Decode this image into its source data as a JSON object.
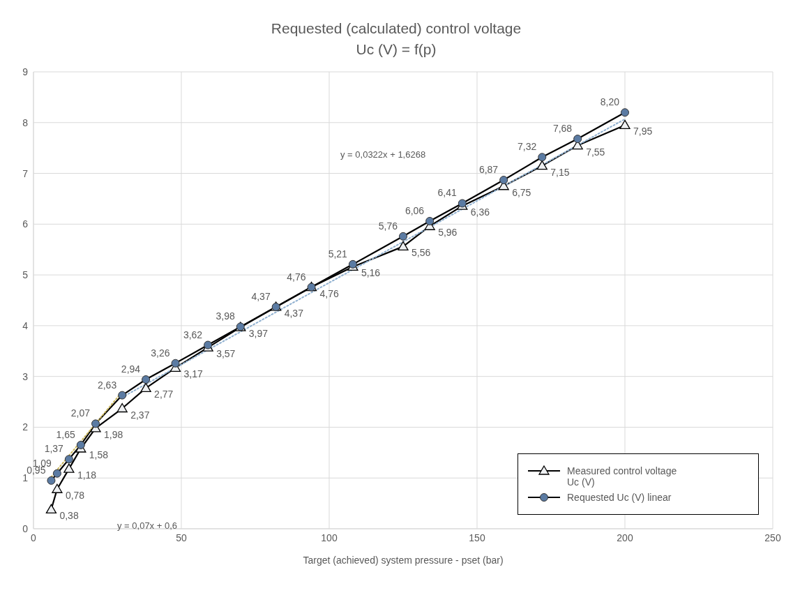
{
  "chart_data": {
    "type": "line",
    "title": "Requested (calculated) control voltage",
    "subtitle": "Uc (V) = f(p)",
    "xlabel": "Target (achieved) system pressure - pset (bar)",
    "x": [
      6,
      8,
      12,
      16,
      21,
      30,
      38,
      48,
      59,
      70,
      82,
      94,
      108,
      125,
      134,
      145,
      159,
      172,
      184,
      200
    ],
    "series": [
      {
        "name": "Measured control voltage Uc (V)",
        "color": "#000000",
        "marker": "triangle",
        "line_style": "solid",
        "values": [
          0.38,
          0.78,
          1.18,
          1.58,
          1.98,
          2.37,
          2.77,
          3.17,
          3.57,
          3.97,
          4.37,
          4.76,
          5.16,
          5.56,
          5.96,
          6.36,
          6.75,
          7.15,
          7.55,
          7.95
        ],
        "value_labels": [
          "0,38",
          "0,78",
          "1,18",
          "1,58",
          "1,98",
          "2,37",
          "2,77",
          "3,17",
          "3,57",
          "3,97",
          "4,37",
          "4,76",
          "5,16",
          "5,56",
          "5,96",
          "6,36",
          "6,75",
          "7,15",
          "7,55",
          "7,95"
        ]
      },
      {
        "name": "Requested Uc (V) linear",
        "color": "#5b7ba3",
        "marker": "circle",
        "line_style": "solid",
        "values": [
          0.95,
          1.09,
          1.37,
          1.65,
          2.07,
          2.63,
          2.94,
          3.26,
          3.62,
          3.98,
          4.37,
          4.76,
          5.21,
          5.76,
          6.06,
          6.41,
          6.87,
          7.32,
          7.68,
          8.2
        ],
        "value_labels": [
          "0,95",
          "1,09",
          "1,37",
          "1,65",
          "2,07",
          "2,63",
          "2,94",
          "3,26",
          "3,62",
          "3,98",
          "4,37",
          "4,76",
          "5,21",
          "5,76",
          "6,06",
          "6,41",
          "6,87",
          "7,32",
          "7,68",
          "8,20"
        ]
      },
      {
        "type": "line",
        "color": "#c8b45a",
        "marker": "none",
        "line_style": "dotted",
        "x": [
          6,
          30
        ],
        "values": [
          1.02,
          2.7
        ]
      },
      {
        "type": "line",
        "color": "#8fb0d0",
        "marker": "none",
        "line_style": "dotted",
        "x": [
          30,
          200
        ],
        "values": [
          2.59,
          8.07
        ]
      }
    ],
    "xlim": [
      0,
      250
    ],
    "xticks": [
      0,
      50,
      100,
      150,
      200,
      250
    ],
    "ylim": [
      0,
      9
    ],
    "yticks": [
      0,
      1,
      2,
      3,
      4,
      5,
      6,
      7,
      8,
      9
    ],
    "grid": true,
    "legend": "bottom right",
    "annotations": [
      "y = 0,0322x + 1,6268",
      "y = 0,07x + 0,6"
    ]
  }
}
